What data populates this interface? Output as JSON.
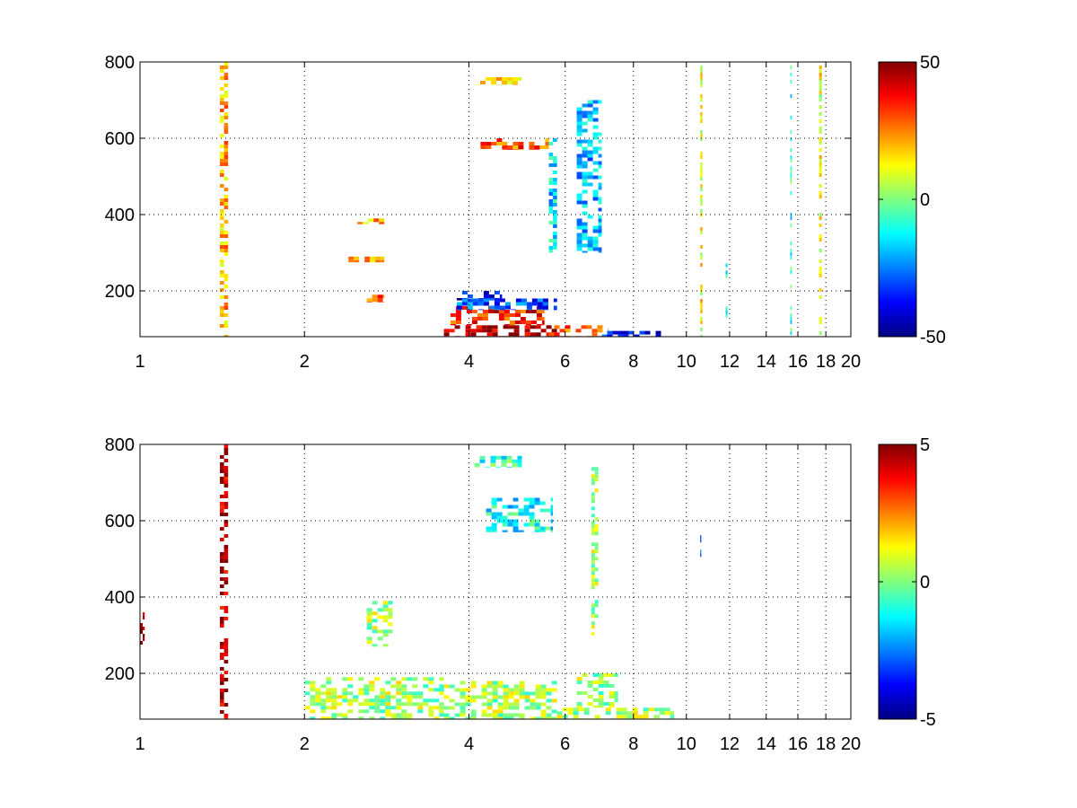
{
  "chart_data": [
    {
      "type": "heatmap",
      "title": "",
      "xlabel": "",
      "ylabel": "",
      "xlim": [
        1,
        20
      ],
      "ylim": [
        80,
        800
      ],
      "xscale": "log",
      "x_ticks": [
        {
          "value": 1,
          "label": "1"
        },
        {
          "value": 2,
          "label": "2"
        },
        {
          "value": 4,
          "label": "4"
        },
        {
          "value": 6,
          "label": "6"
        },
        {
          "value": 8,
          "label": "8"
        },
        {
          "value": 10,
          "label": "10"
        },
        {
          "value": 12,
          "label": "12"
        },
        {
          "value": 14,
          "label": "14"
        },
        {
          "value": 16,
          "label": "16"
        },
        {
          "value": 18,
          "label": "18"
        },
        {
          "value": 20,
          "label": "20"
        }
      ],
      "y_ticks": [
        {
          "value": 200,
          "label": "200"
        },
        {
          "value": 400,
          "label": "400"
        },
        {
          "value": 600,
          "label": "600"
        },
        {
          "value": 800,
          "label": "800"
        }
      ],
      "grid": true,
      "colormap": "jet",
      "colorbar": {
        "position": "right",
        "min": -50,
        "max": 50,
        "ticks": [
          {
            "value": 50,
            "label": "50"
          },
          {
            "value": 0,
            "label": "0"
          },
          {
            "value": -50,
            "label": "-50"
          }
        ]
      },
      "features": [
        {
          "x": [
            3.6,
            5.8
          ],
          "y": [
            80,
            110
          ],
          "value": 45
        },
        {
          "x": [
            3.7,
            5.5
          ],
          "y": [
            110,
            160
          ],
          "value": 35
        },
        {
          "x": [
            5.6,
            7.2
          ],
          "y": [
            80,
            110
          ],
          "value": 30
        },
        {
          "x": [
            2.6,
            2.8
          ],
          "y": [
            170,
            190
          ],
          "value": 30
        },
        {
          "x": [
            2.3,
            2.8
          ],
          "y": [
            275,
            290
          ],
          "value": 25
        },
        {
          "x": [
            2.5,
            2.8
          ],
          "y": [
            375,
            390
          ],
          "value": 20
        },
        {
          "x": [
            3.8,
            4.6
          ],
          "y": [
            175,
            200
          ],
          "value": -40
        },
        {
          "x": [
            3.8,
            5.8
          ],
          "y": [
            150,
            180
          ],
          "value": -30
        },
        {
          "x": [
            7.0,
            9.0
          ],
          "y": [
            80,
            95
          ],
          "value": -35
        },
        {
          "x": [
            4.2,
            5.6
          ],
          "y": [
            570,
            600
          ],
          "value": 30
        },
        {
          "x": [
            4.1,
            5.0
          ],
          "y": [
            740,
            760
          ],
          "value": 15
        },
        {
          "x": [
            6.3,
            7.0
          ],
          "y": [
            300,
            700
          ],
          "value": -20
        },
        {
          "x": [
            5.6,
            5.8
          ],
          "y": [
            300,
            600
          ],
          "value": -15
        },
        {
          "x": [
            1.4,
            1.45
          ],
          "y": [
            80,
            800
          ],
          "value": 20
        },
        {
          "x": [
            10.6,
            10.7
          ],
          "y": [
            80,
            800
          ],
          "value": 12
        },
        {
          "x": [
            17.5,
            17.7
          ],
          "y": [
            80,
            800
          ],
          "value": 10
        },
        {
          "x": [
            11.8,
            11.9
          ],
          "y": [
            120,
            300
          ],
          "value": -15
        },
        {
          "x": [
            15.5,
            15.6
          ],
          "y": [
            80,
            800
          ],
          "value": -10
        }
      ]
    },
    {
      "type": "heatmap",
      "title": "",
      "xlabel": "",
      "ylabel": "",
      "xlim": [
        1,
        20
      ],
      "ylim": [
        80,
        800
      ],
      "xscale": "log",
      "x_ticks": [
        {
          "value": 1,
          "label": "1"
        },
        {
          "value": 2,
          "label": "2"
        },
        {
          "value": 4,
          "label": "4"
        },
        {
          "value": 6,
          "label": "6"
        },
        {
          "value": 8,
          "label": "8"
        },
        {
          "value": 10,
          "label": "10"
        },
        {
          "value": 12,
          "label": "12"
        },
        {
          "value": 14,
          "label": "14"
        },
        {
          "value": 16,
          "label": "16"
        },
        {
          "value": 18,
          "label": "18"
        },
        {
          "value": 20,
          "label": "20"
        }
      ],
      "y_ticks": [
        {
          "value": 200,
          "label": "200"
        },
        {
          "value": 400,
          "label": "400"
        },
        {
          "value": 600,
          "label": "600"
        },
        {
          "value": 800,
          "label": "800"
        }
      ],
      "grid": true,
      "colormap": "jet",
      "colorbar": {
        "position": "right",
        "min": -5,
        "max": 5,
        "ticks": [
          {
            "value": 5,
            "label": "5"
          },
          {
            "value": 0,
            "label": "0"
          },
          {
            "value": -5,
            "label": "-5"
          }
        ]
      },
      "features": [
        {
          "x": [
            3.6,
            5.8
          ],
          "y": [
            80,
            180
          ],
          "value": 0.4
        },
        {
          "x": [
            2.0,
            3.6
          ],
          "y": [
            80,
            190
          ],
          "value": 0.4
        },
        {
          "x": [
            5.8,
            9.5
          ],
          "y": [
            80,
            110
          ],
          "value": 0.4
        },
        {
          "x": [
            6.3,
            7.5
          ],
          "y": [
            110,
            200
          ],
          "value": 0.3
        },
        {
          "x": [
            4.3,
            5.7
          ],
          "y": [
            570,
            660
          ],
          "value": -1.2
        },
        {
          "x": [
            4.0,
            5.0
          ],
          "y": [
            740,
            770
          ],
          "value": -0.8
        },
        {
          "x": [
            6.7,
            6.9
          ],
          "y": [
            300,
            750
          ],
          "value": 0.4
        },
        {
          "x": [
            2.6,
            2.9
          ],
          "y": [
            270,
            390
          ],
          "value": 0.4
        },
        {
          "x": [
            1.4,
            1.45
          ],
          "y": [
            80,
            800
          ],
          "value": 4.5
        },
        {
          "x": [
            1.0,
            1.02
          ],
          "y": [
            260,
            360
          ],
          "value": 5
        },
        {
          "x": [
            10.6,
            10.65
          ],
          "y": [
            500,
            590
          ],
          "value": -2.5
        }
      ]
    }
  ]
}
